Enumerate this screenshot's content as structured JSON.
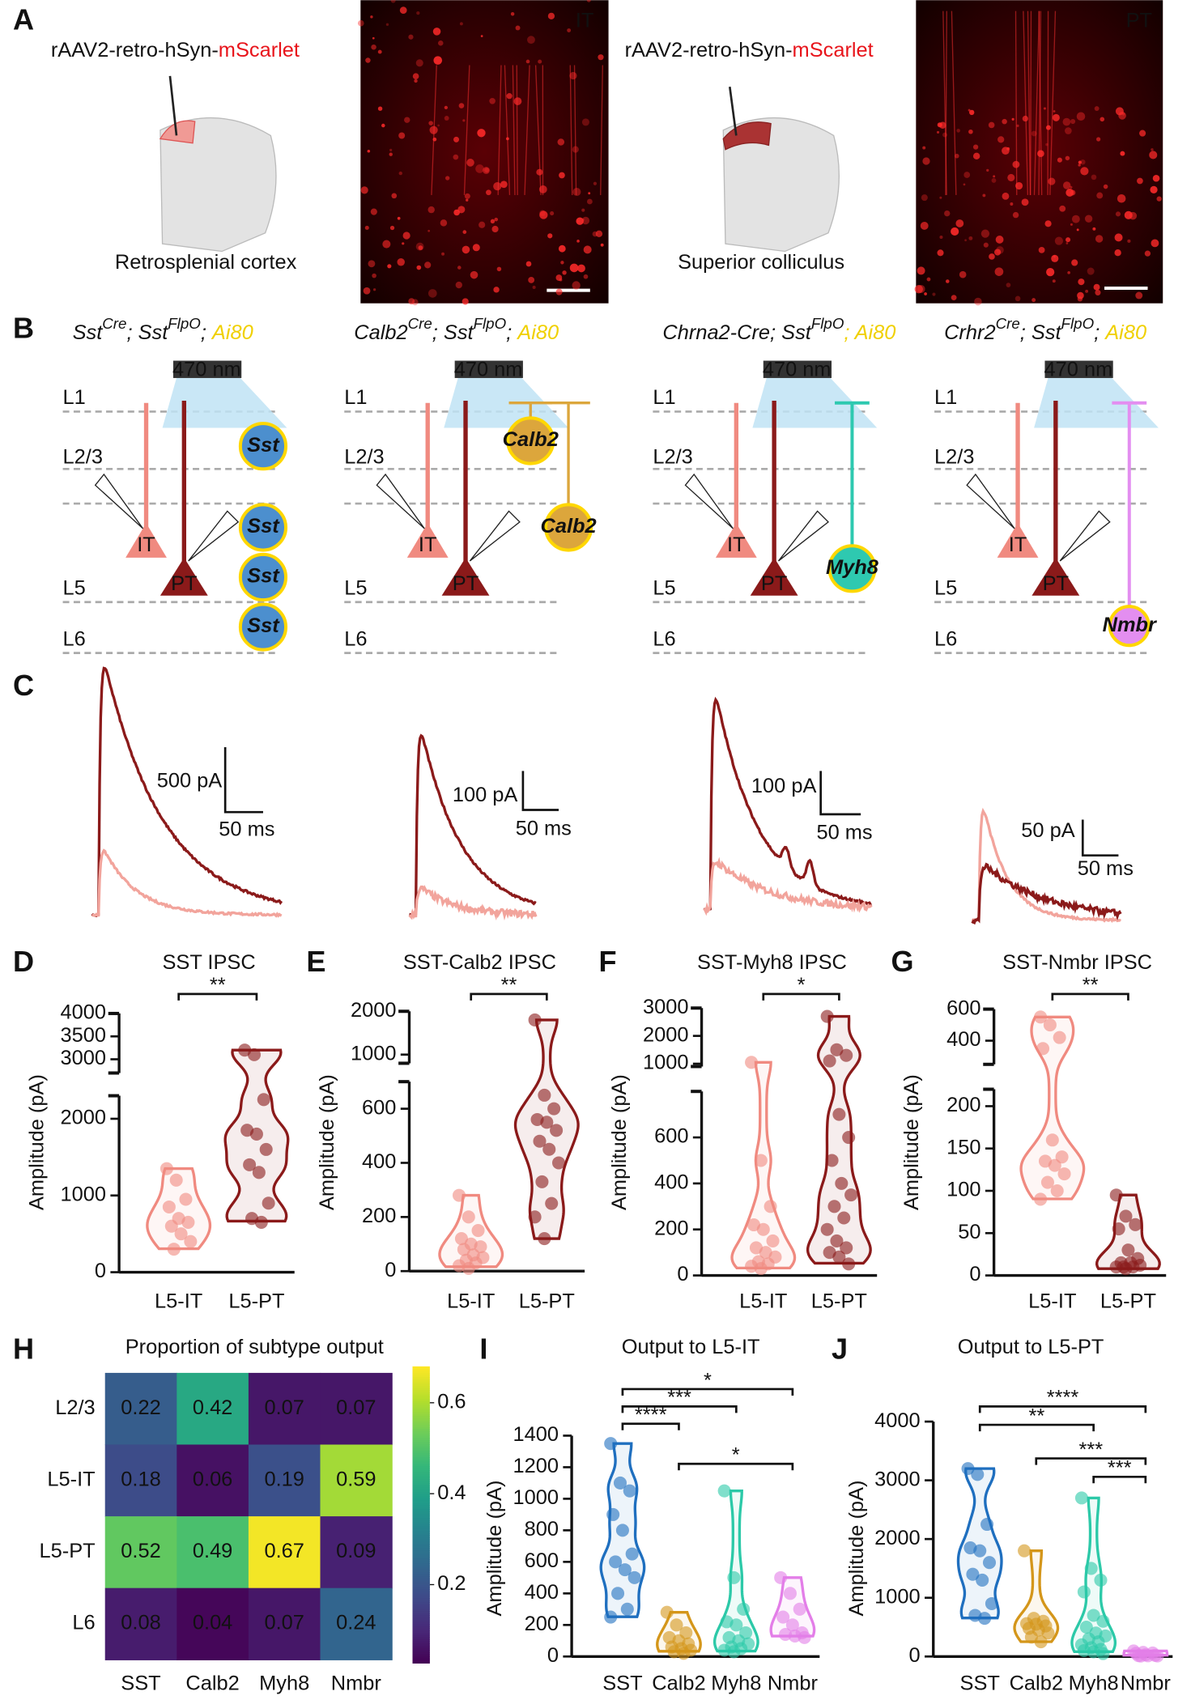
{
  "A": {
    "label": "A",
    "injections": [
      {
        "prefix": "rAAV2-retro-hSyn-",
        "reporter": "mScarlet",
        "reporter_color": "#e8141b",
        "region": "Retrosplenial cortex",
        "tag": "IT"
      },
      {
        "prefix": "rAAV2-retro-hSyn-",
        "reporter": "mScarlet",
        "reporter_color": "#e8141b",
        "region": "Superior colliculus",
        "tag": "PT"
      }
    ]
  },
  "B": {
    "label": "B",
    "light": "470 nm",
    "layers": [
      "L1",
      "L2/3",
      "L5",
      "L6"
    ],
    "cells": [
      "IT",
      "PT"
    ],
    "columns": [
      {
        "genotype": [
          {
            "text": "Sst"
          },
          {
            "text": "Cre",
            "sup": true
          },
          {
            "text": "; Sst"
          },
          {
            "text": "FlpO",
            "sup": true
          },
          {
            "text": "; "
          },
          {
            "text": "Ai80",
            "color": "#f0d000"
          }
        ],
        "interneuron": {
          "label": "Sst",
          "color": "#4c8fce"
        }
      },
      {
        "genotype": [
          {
            "text": "Calb2"
          },
          {
            "text": "Cre",
            "sup": true
          },
          {
            "text": "; Sst"
          },
          {
            "text": "FlpO",
            "sup": true
          },
          {
            "text": "; "
          },
          {
            "text": "Ai80",
            "color": "#f0d000"
          }
        ],
        "interneuron": {
          "label": "Calb2",
          "color": "#dca63c"
        }
      },
      {
        "genotype": [
          {
            "text": "Chrna2-Cre; Sst"
          },
          {
            "text": "FlpO",
            "sup": true
          },
          {
            "text": "; Ai80",
            "color": "#f0d000"
          }
        ],
        "interneuron": {
          "label": "Myh8",
          "color": "#2ec9b0"
        }
      },
      {
        "genotype": [
          {
            "text": "Crhr2"
          },
          {
            "text": "Cre",
            "sup": true
          },
          {
            "text": "; Sst"
          },
          {
            "text": "FlpO",
            "sup": true
          },
          {
            "text": "; "
          },
          {
            "text": "Ai80",
            "color": "#f0d000"
          }
        ],
        "interneuron": {
          "label": "Nmbr",
          "color": "#e38ef0"
        }
      }
    ]
  },
  "C": {
    "label": "C",
    "scale_bars": [
      {
        "amplitude": "500 pA",
        "time": "50 ms"
      },
      {
        "amplitude": "100 pA",
        "time": "50 ms"
      },
      {
        "amplitude": "100 pA",
        "time": "50 ms"
      },
      {
        "amplitude": "50 pA",
        "time": "50 ms"
      }
    ]
  },
  "violins": [
    {
      "label": "D",
      "title": "SST IPSC",
      "color": "#5b7fd6",
      "ylabel": "Amplitude (pA)",
      "categories": [
        "L5-IT",
        "L5-PT"
      ],
      "category_colors": [
        "#f08a80",
        "#8b1a1a"
      ],
      "segments": [
        {
          "ylim": [
            0,
            2300
          ],
          "yticks": [
            0,
            1000,
            2000
          ]
        },
        {
          "ylim": [
            2700,
            4000
          ],
          "yticks": [
            3000,
            3500,
            4000
          ]
        }
      ],
      "groups": [
        [
          1350,
          1200,
          950,
          850,
          700,
          650,
          600,
          500,
          400,
          300
        ],
        [
          3200,
          3100,
          2250,
          1850,
          1800,
          1600,
          1400,
          1300,
          900,
          700,
          650
        ]
      ],
      "significance": [
        {
          "pair": [
            0,
            1
          ],
          "label": "**"
        }
      ]
    },
    {
      "label": "E",
      "title": "SST-Calb2 IPSC",
      "color": "#d9a335",
      "ylabel": "Amplitude (pA)",
      "categories": [
        "L5-IT",
        "L5-PT"
      ],
      "category_colors": [
        "#f08a80",
        "#8b1a1a"
      ],
      "segments": [
        {
          "ylim": [
            0,
            700
          ],
          "yticks": [
            0,
            200,
            400,
            600
          ]
        },
        {
          "ylim": [
            800,
            2000
          ],
          "yticks": [
            1000,
            2000
          ]
        }
      ],
      "groups": [
        [
          280,
          200,
          150,
          120,
          100,
          90,
          80,
          60,
          50,
          40,
          30,
          20,
          10
        ],
        [
          1800,
          650,
          600,
          560,
          550,
          520,
          480,
          450,
          400,
          330,
          250,
          200,
          120
        ]
      ],
      "significance": [
        {
          "pair": [
            0,
            1
          ],
          "label": "**"
        }
      ]
    },
    {
      "label": "F",
      "title": "SST-Myh8 IPSC",
      "color": "#2ec9b0",
      "ylabel": "Amplitude (pA)",
      "categories": [
        "L5-IT",
        "L5-PT"
      ],
      "category_colors": [
        "#f08a80",
        "#8b1a1a"
      ],
      "segments": [
        {
          "ylim": [
            0,
            800
          ],
          "yticks": [
            0,
            200,
            400,
            600
          ]
        },
        {
          "ylim": [
            900,
            3000
          ],
          "yticks": [
            1000,
            2000,
            3000
          ]
        }
      ],
      "groups": [
        [
          1050,
          500,
          300,
          220,
          200,
          150,
          120,
          100,
          80,
          60,
          50,
          40,
          30
        ],
        [
          2700,
          1500,
          1300,
          1100,
          700,
          600,
          500,
          400,
          350,
          300,
          250,
          200,
          150,
          120,
          100,
          80,
          50
        ]
      ],
      "significance": [
        {
          "pair": [
            0,
            1
          ],
          "label": "*"
        }
      ]
    },
    {
      "label": "G",
      "title": "SST-Nmbr IPSC",
      "color": "#e38ef0",
      "ylabel": "Amplitude (pA)",
      "categories": [
        "L5-IT",
        "L5-PT"
      ],
      "category_colors": [
        "#f08a80",
        "#8b1a1a"
      ],
      "segments": [
        {
          "ylim": [
            0,
            220
          ],
          "yticks": [
            0,
            50,
            100,
            150,
            200
          ]
        },
        {
          "ylim": [
            250,
            600
          ],
          "yticks": [
            400,
            600
          ]
        }
      ],
      "groups": [
        [
          550,
          500,
          420,
          350,
          160,
          140,
          135,
          130,
          120,
          110,
          100,
          90
        ],
        [
          95,
          70,
          60,
          55,
          30,
          20,
          15,
          15,
          12,
          10,
          10,
          10,
          8
        ]
      ],
      "significance": [
        {
          "pair": [
            0,
            1
          ],
          "label": "**"
        }
      ]
    }
  ],
  "H": {
    "label": "H",
    "title": "Proportion of subtype output",
    "rows": [
      "L2/3",
      "L5-IT",
      "L5-PT",
      "L6"
    ],
    "columns": [
      "SST",
      "Calb2",
      "Myh8",
      "Nmbr"
    ],
    "column_colors": [
      "#1f6fbf",
      "#d4961a",
      "#2cc9a8",
      "#e37ee8"
    ],
    "values": [
      [
        0.22,
        0.42,
        0.07,
        0.07
      ],
      [
        0.18,
        0.06,
        0.19,
        0.59
      ],
      [
        0.52,
        0.49,
        0.67,
        0.09
      ],
      [
        0.08,
        0.04,
        0.07,
        0.24
      ]
    ],
    "colorbar": {
      "clim": [
        0.03,
        0.68
      ],
      "ticks": [
        0.2,
        0.4,
        0.6
      ]
    }
  },
  "outputs": [
    {
      "label": "I",
      "title": "Output to L5-IT",
      "ylabel": "Amplitude (pA)",
      "categories": [
        "SST",
        "Calb2",
        "Myh8",
        "Nmbr"
      ],
      "colors": [
        "#1f6fbf",
        "#d4961a",
        "#2cc9a8",
        "#e37ee8"
      ],
      "ylim": [
        0,
        1400
      ],
      "yticks": [
        0,
        200,
        400,
        600,
        800,
        1000,
        1200,
        1400
      ],
      "groups": [
        [
          1350,
          1100,
          1050,
          900,
          800,
          650,
          600,
          550,
          500,
          400,
          300,
          250
        ],
        [
          280,
          200,
          150,
          120,
          100,
          80,
          60,
          50,
          40,
          30,
          20
        ],
        [
          1050,
          500,
          300,
          220,
          200,
          150,
          120,
          100,
          80,
          60,
          50,
          40,
          30
        ],
        [
          500,
          400,
          300,
          250,
          200,
          150,
          140,
          130,
          120
        ]
      ],
      "significance": [
        {
          "pair": [
            0,
            3
          ],
          "label": "*"
        },
        {
          "pair": [
            0,
            2
          ],
          "label": "***"
        },
        {
          "pair": [
            0,
            1
          ],
          "label": "****"
        },
        {
          "pair": [
            1,
            3
          ],
          "label": "*"
        }
      ]
    },
    {
      "label": "J",
      "title": "Output to L5-PT",
      "ylabel": "Amplitude (pA)",
      "categories": [
        "SST",
        "Calb2",
        "Myh8",
        "Nmbr"
      ],
      "colors": [
        "#1f6fbf",
        "#d4961a",
        "#2cc9a8",
        "#e37ee8"
      ],
      "ylim": [
        0,
        4000
      ],
      "yticks": [
        0,
        1000,
        2000,
        3000,
        4000
      ],
      "groups": [
        [
          3200,
          3100,
          2250,
          1850,
          1800,
          1600,
          1400,
          1300,
          900,
          700,
          650
        ],
        [
          1800,
          650,
          600,
          560,
          550,
          520,
          480,
          450,
          400,
          330,
          250
        ],
        [
          2700,
          1500,
          1300,
          1100,
          700,
          600,
          500,
          400,
          350,
          300,
          250,
          200,
          150,
          120,
          100,
          80,
          50
        ],
        [
          95,
          70,
          60,
          55,
          30,
          20,
          15,
          12,
          10,
          8
        ]
      ],
      "significance": [
        {
          "pair": [
            0,
            3
          ],
          "label": "****"
        },
        {
          "pair": [
            0,
            2
          ],
          "label": "**"
        },
        {
          "pair": [
            1,
            3
          ],
          "label": "***"
        },
        {
          "pair": [
            2,
            3
          ],
          "label": "***"
        }
      ]
    }
  ]
}
